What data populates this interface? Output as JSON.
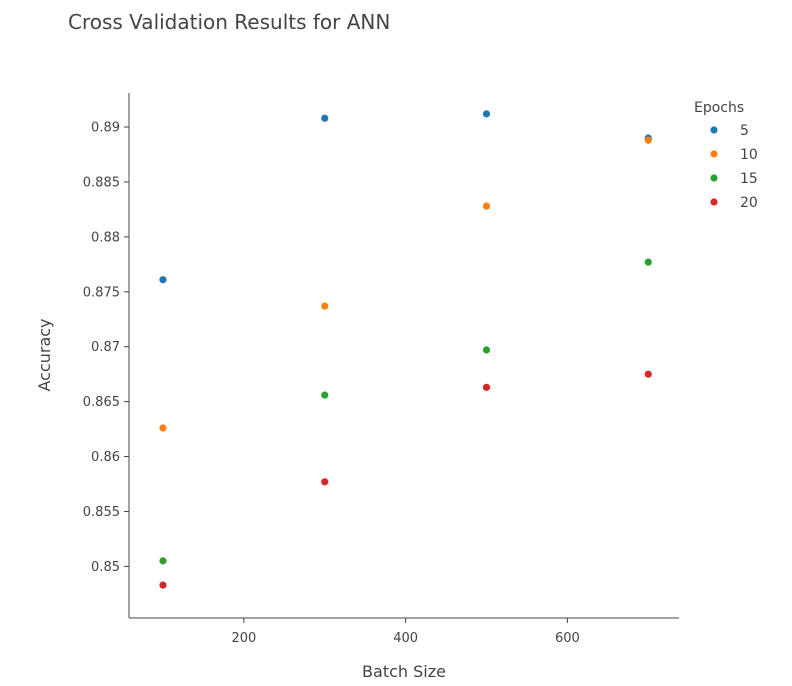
{
  "chart_data": {
    "type": "scatter",
    "title": "Cross Validation Results for ANN",
    "xlabel": "Batch Size",
    "ylabel": "Accuracy",
    "xlim": [
      58,
      738
    ],
    "ylim": [
      0.8453,
      0.8931
    ],
    "x_ticks": [
      200,
      400,
      600
    ],
    "y_ticks": [
      0.85,
      0.855,
      0.86,
      0.865,
      0.87,
      0.875,
      0.88,
      0.885,
      0.89
    ],
    "x_tick_labels": [
      "200",
      "400",
      "600"
    ],
    "y_tick_labels": [
      "0.85",
      "0.855",
      "0.86",
      "0.865",
      "0.87",
      "0.875",
      "0.88",
      "0.885",
      "0.89"
    ],
    "grid": false,
    "legend": {
      "title": "Epochs",
      "position": "top-right"
    },
    "series": [
      {
        "name": "5",
        "color": "#1f77b4",
        "x": [
          100,
          300,
          500,
          700
        ],
        "y": [
          0.8761,
          0.8908,
          0.8912,
          0.889
        ]
      },
      {
        "name": "10",
        "color": "#ff7f0e",
        "x": [
          100,
          300,
          500,
          700
        ],
        "y": [
          0.8626,
          0.8737,
          0.8828,
          0.8888
        ]
      },
      {
        "name": "15",
        "color": "#2ca02c",
        "x": [
          100,
          300,
          500,
          700
        ],
        "y": [
          0.8505,
          0.8656,
          0.8697,
          0.8777
        ]
      },
      {
        "name": "20",
        "color": "#d62728",
        "x": [
          100,
          300,
          500,
          700
        ],
        "y": [
          0.8483,
          0.8577,
          0.8663,
          0.8675
        ]
      }
    ]
  }
}
